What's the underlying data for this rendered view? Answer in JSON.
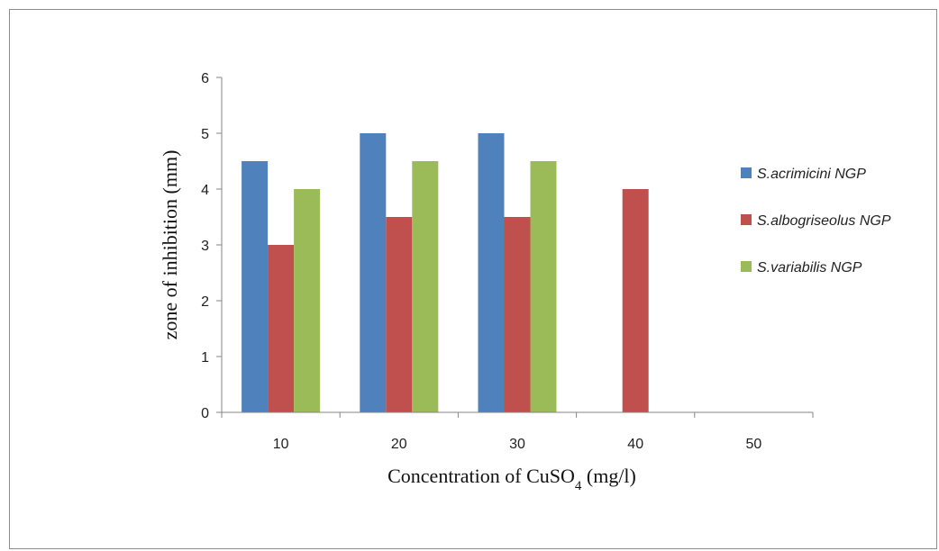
{
  "chart_data": {
    "type": "bar",
    "categories": [
      "10",
      "20",
      "30",
      "40",
      "50"
    ],
    "series": [
      {
        "name": "S.acrimicini NGP",
        "color": "#4f81bd",
        "values": [
          4.5,
          5,
          5,
          0,
          0
        ]
      },
      {
        "name": "S.albogriseolus NGP",
        "color": "#c0504d",
        "values": [
          3,
          3.5,
          3.5,
          4,
          0
        ]
      },
      {
        "name": "S.variabilis NGP",
        "color": "#9bbb59",
        "values": [
          4,
          4.5,
          4.5,
          0,
          0
        ]
      }
    ],
    "xlabel": {
      "main": "Concentration of CuSO",
      "sub": "4",
      "unit": " (mg/l)"
    },
    "ylabel": "zone of inhibition (mm)",
    "ylim": [
      0,
      6
    ],
    "yticks": [
      "0",
      "1",
      "2",
      "3",
      "4",
      "5",
      "6"
    ],
    "grid": false,
    "legend_position": "right"
  }
}
